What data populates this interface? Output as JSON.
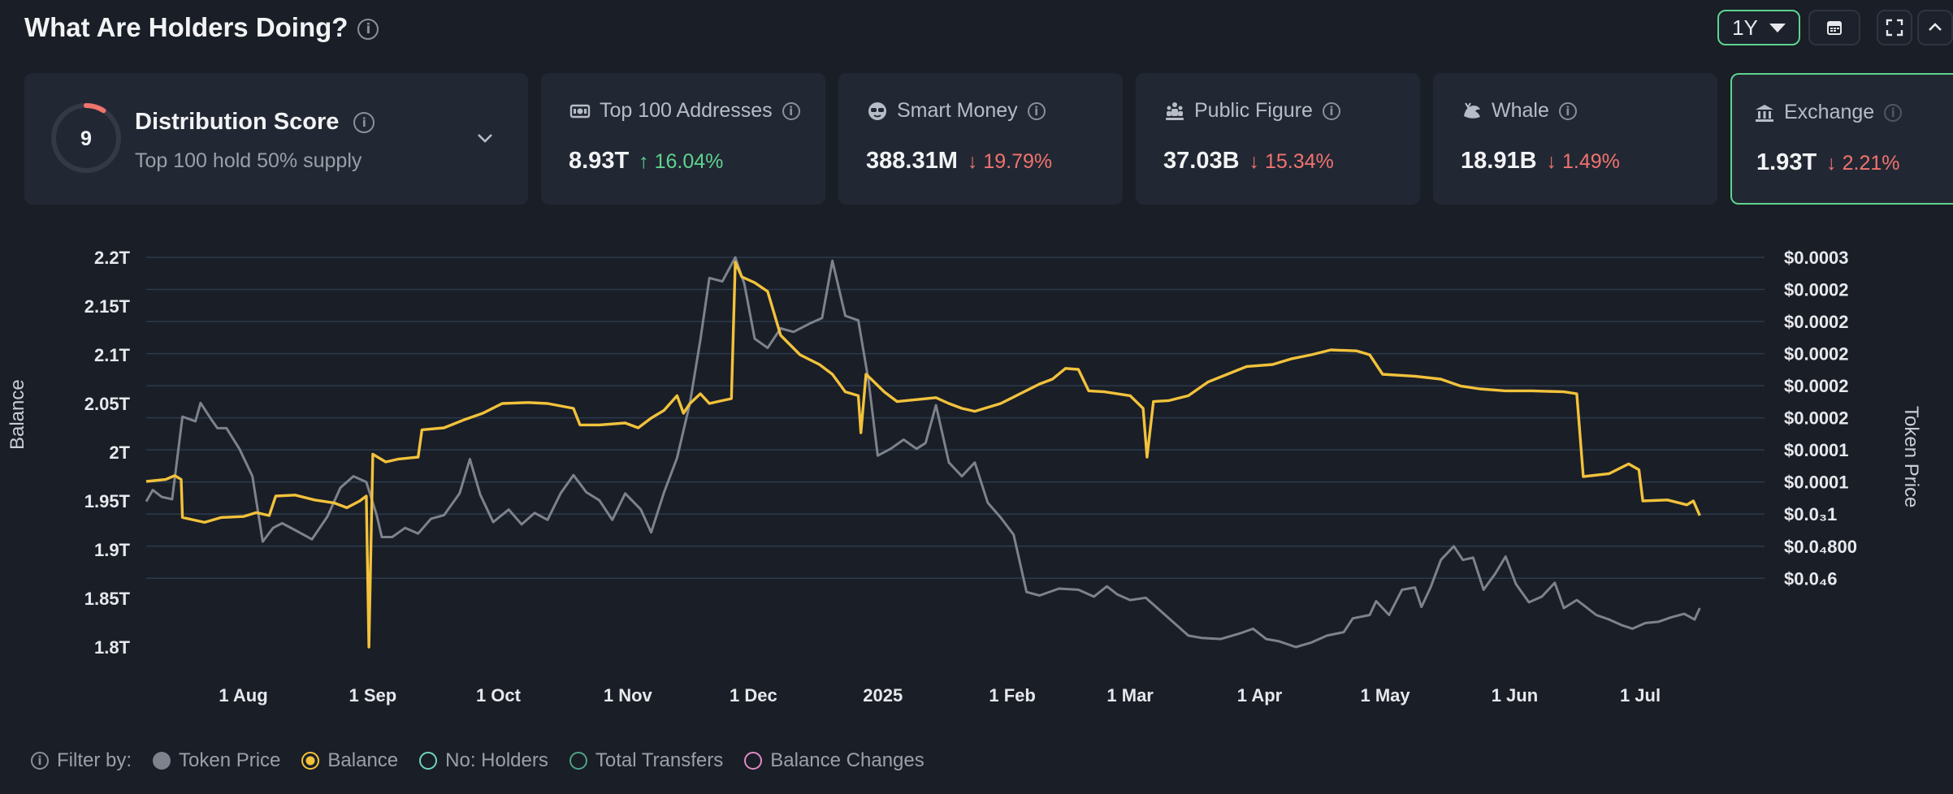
{
  "header": {
    "title": "What Are Holders Doing?",
    "range_label": "1Y"
  },
  "icons": {
    "title_info": "info-icon",
    "calendar": "calendar-icon",
    "expand": "fullscreen-icon",
    "collapse": "chevron-up-icon",
    "top100": "money-icon",
    "smart_money": "sunglasses-icon",
    "public_figure": "crowd-icon",
    "whale": "whale-icon",
    "exchange": "bank-icon"
  },
  "distribution": {
    "score": "9",
    "score_fraction": 0.09,
    "title": "Distribution Score",
    "subtitle": "Top 100 hold 50% supply"
  },
  "cards": [
    {
      "key": "top100",
      "title": "Top 100 Addresses",
      "value": "8.93T",
      "change": "16.04%",
      "direction": "up"
    },
    {
      "key": "smart_money",
      "title": "Smart Money",
      "value": "388.31M",
      "change": "19.79%",
      "direction": "down"
    },
    {
      "key": "public_figure",
      "title": "Public Figure",
      "value": "37.03B",
      "change": "15.34%",
      "direction": "down"
    },
    {
      "key": "whale",
      "title": "Whale",
      "value": "18.91B",
      "change": "1.49%",
      "direction": "down"
    },
    {
      "key": "exchange",
      "title": "Exchange",
      "value": "1.93T",
      "change": "2.21%",
      "direction": "down"
    }
  ],
  "colors": {
    "accent_green": "#5ed38f",
    "down_red": "#f0736e",
    "balance_line": "#f2c23b",
    "price_line": "#7d828c",
    "holders": "#6fd6b8",
    "transfers": "#4fa386",
    "balance_changes": "#e08bc4"
  },
  "chart_data": {
    "type": "line",
    "ylabel": "Balance",
    "y2label": "Token Price",
    "left_ticks": [
      "2.2T",
      "2.15T",
      "2.1T",
      "2.05T",
      "2T",
      "1.95T",
      "1.9T",
      "1.85T",
      "1.8T"
    ],
    "left_range": [
      1.8,
      2.2
    ],
    "right_ticks": [
      "$0.0003",
      "$0.0002",
      "$0.0002",
      "$0.0002",
      "$0.0002",
      "$0.0002",
      "$0.0001",
      "$0.0001",
      "$0.0₃1",
      "$0.0₄800",
      "$0.0₄6"
    ],
    "x_ticks": [
      "1 Aug",
      "1 Sep",
      "1 Oct",
      "1 Nov",
      "1 Dec",
      "2025",
      "1 Feb",
      "1 Mar",
      "1 Apr",
      "1 May",
      "1 Jun",
      "1 Jul"
    ],
    "x_range": [
      0,
      12.5
    ],
    "x_tick_positions": [
      0.75,
      1.75,
      2.72,
      3.72,
      4.69,
      5.69,
      6.69,
      7.6,
      8.6,
      9.57,
      10.57,
      11.54
    ],
    "grid": true,
    "series": [
      {
        "name": "Balance",
        "unit": "T",
        "points": [
          [
            0,
            1.97
          ],
          [
            0.15,
            1.972
          ],
          [
            0.22,
            1.976
          ],
          [
            0.27,
            1.972
          ],
          [
            0.28,
            1.933
          ],
          [
            0.45,
            1.928
          ],
          [
            0.58,
            1.933
          ],
          [
            0.75,
            1.934
          ],
          [
            0.85,
            1.938
          ],
          [
            0.95,
            1.935
          ],
          [
            1.0,
            1.955
          ],
          [
            1.15,
            1.956
          ],
          [
            1.3,
            1.951
          ],
          [
            1.45,
            1.948
          ],
          [
            1.55,
            1.943
          ],
          [
            1.65,
            1.95
          ],
          [
            1.7,
            1.955
          ],
          [
            1.72,
            1.8
          ],
          [
            1.75,
            1.998
          ],
          [
            1.85,
            1.99
          ],
          [
            1.95,
            1.993
          ],
          [
            2.1,
            1.995
          ],
          [
            2.13,
            2.023
          ],
          [
            2.3,
            2.025
          ],
          [
            2.45,
            2.033
          ],
          [
            2.6,
            2.04
          ],
          [
            2.75,
            2.05
          ],
          [
            2.95,
            2.051
          ],
          [
            3.1,
            2.05
          ],
          [
            3.3,
            2.045
          ],
          [
            3.35,
            2.028
          ],
          [
            3.5,
            2.028
          ],
          [
            3.7,
            2.03
          ],
          [
            3.8,
            2.025
          ],
          [
            3.9,
            2.035
          ],
          [
            4.0,
            2.043
          ],
          [
            4.1,
            2.058
          ],
          [
            4.15,
            2.04
          ],
          [
            4.2,
            2.05
          ],
          [
            4.28,
            2.06
          ],
          [
            4.35,
            2.05
          ],
          [
            4.45,
            2.053
          ],
          [
            4.52,
            2.055
          ],
          [
            4.55,
            2.195
          ],
          [
            4.6,
            2.18
          ],
          [
            4.7,
            2.174
          ],
          [
            4.8,
            2.165
          ],
          [
            4.9,
            2.12
          ],
          [
            5.05,
            2.1
          ],
          [
            5.2,
            2.09
          ],
          [
            5.3,
            2.08
          ],
          [
            5.4,
            2.062
          ],
          [
            5.5,
            2.058
          ],
          [
            5.52,
            2.02
          ],
          [
            5.56,
            2.08
          ],
          [
            5.6,
            2.075
          ],
          [
            5.7,
            2.062
          ],
          [
            5.8,
            2.052
          ],
          [
            5.95,
            2.054
          ],
          [
            6.1,
            2.056
          ],
          [
            6.2,
            2.05
          ],
          [
            6.3,
            2.045
          ],
          [
            6.4,
            2.042
          ],
          [
            6.6,
            2.05
          ],
          [
            6.75,
            2.06
          ],
          [
            6.9,
            2.07
          ],
          [
            7.0,
            2.075
          ],
          [
            7.1,
            2.086
          ],
          [
            7.2,
            2.085
          ],
          [
            7.28,
            2.063
          ],
          [
            7.4,
            2.062
          ],
          [
            7.6,
            2.058
          ],
          [
            7.7,
            2.045
          ],
          [
            7.73,
            1.995
          ],
          [
            7.78,
            2.052
          ],
          [
            7.9,
            2.053
          ],
          [
            8.05,
            2.058
          ],
          [
            8.2,
            2.072
          ],
          [
            8.35,
            2.08
          ],
          [
            8.5,
            2.088
          ],
          [
            8.7,
            2.09
          ],
          [
            8.85,
            2.096
          ],
          [
            9.0,
            2.1
          ],
          [
            9.15,
            2.105
          ],
          [
            9.35,
            2.104
          ],
          [
            9.45,
            2.1
          ],
          [
            9.55,
            2.08
          ],
          [
            9.8,
            2.078
          ],
          [
            10.0,
            2.075
          ],
          [
            10.15,
            2.068
          ],
          [
            10.3,
            2.065
          ],
          [
            10.5,
            2.063
          ],
          [
            10.7,
            2.063
          ],
          [
            10.95,
            2.062
          ],
          [
            11.05,
            2.06
          ],
          [
            11.1,
            1.975
          ],
          [
            11.3,
            1.978
          ],
          [
            11.45,
            1.988
          ],
          [
            11.53,
            1.982
          ],
          [
            11.56,
            1.95
          ],
          [
            11.75,
            1.951
          ],
          [
            11.9,
            1.946
          ],
          [
            11.95,
            1.95
          ],
          [
            12.0,
            1.935
          ]
        ]
      },
      {
        "name": "Token Price",
        "unit": "$",
        "points": [
          [
            0,
            8.7e-05
          ],
          [
            0.05,
            9.7e-05
          ],
          [
            0.12,
            9.1e-05
          ],
          [
            0.2,
            8.9e-05
          ],
          [
            0.28,
            0.000161
          ],
          [
            0.38,
            0.000157
          ],
          [
            0.42,
            0.000173
          ],
          [
            0.5,
            0.000159
          ],
          [
            0.55,
            0.000151
          ],
          [
            0.62,
            0.000151
          ],
          [
            0.72,
            0.000133
          ],
          [
            0.82,
            0.000109
          ],
          [
            0.9,
            5.2e-05
          ],
          [
            0.98,
            6.4e-05
          ],
          [
            1.05,
            6.8e-05
          ],
          [
            1.15,
            6.2e-05
          ],
          [
            1.28,
            5.4e-05
          ],
          [
            1.4,
            7.4e-05
          ],
          [
            1.5,
            9.9e-05
          ],
          [
            1.6,
            0.000109
          ],
          [
            1.7,
            0.000104
          ],
          [
            1.78,
            7.5e-05
          ],
          [
            1.82,
            5.6e-05
          ],
          [
            1.9,
            5.6e-05
          ],
          [
            2.0,
            6.4e-05
          ],
          [
            2.1,
            5.9e-05
          ],
          [
            2.2,
            7.2e-05
          ],
          [
            2.3,
            7.5e-05
          ],
          [
            2.42,
            9.4e-05
          ],
          [
            2.5,
            0.000124
          ],
          [
            2.58,
            9.3e-05
          ],
          [
            2.68,
            6.9e-05
          ],
          [
            2.8,
            8e-05
          ],
          [
            2.9,
            6.7e-05
          ],
          [
            3.0,
            7.7e-05
          ],
          [
            3.1,
            7.1e-05
          ],
          [
            3.2,
            9.4e-05
          ],
          [
            3.3,
            0.00011
          ],
          [
            3.4,
            9.5e-05
          ],
          [
            3.5,
            8.8e-05
          ],
          [
            3.6,
            7.1e-05
          ],
          [
            3.7,
            9.4e-05
          ],
          [
            3.82,
            8e-05
          ],
          [
            3.9,
            6e-05
          ],
          [
            4.0,
            9.5e-05
          ],
          [
            4.1,
            0.000125
          ],
          [
            4.2,
            0.000173
          ],
          [
            4.28,
            0.000228
          ],
          [
            4.35,
            0.000282
          ],
          [
            4.45,
            0.000279
          ],
          [
            4.55,
            0.0003
          ],
          [
            4.62,
            0.000277
          ],
          [
            4.7,
            0.000229
          ],
          [
            4.8,
            0.000221
          ],
          [
            4.9,
            0.000238
          ],
          [
            5.0,
            0.000235
          ],
          [
            5.12,
            0.000242
          ],
          [
            5.22,
            0.000247
          ],
          [
            5.3,
            0.000297
          ],
          [
            5.4,
            0.000249
          ],
          [
            5.5,
            0.000245
          ],
          [
            5.58,
            0.000192
          ],
          [
            5.65,
            0.000127
          ],
          [
            5.75,
            0.000133
          ],
          [
            5.85,
            0.000141
          ],
          [
            5.95,
            0.000133
          ],
          [
            6.02,
            0.000138
          ],
          [
            6.1,
            0.000171
          ],
          [
            6.2,
            0.000121
          ],
          [
            6.3,
            0.000109
          ],
          [
            6.4,
            0.000121
          ],
          [
            6.5,
            8.6e-05
          ],
          [
            6.6,
            7.3e-05
          ],
          [
            6.7,
            5.8e-05
          ],
          [
            6.8,
            8e-06
          ],
          [
            6.9,
            5e-06
          ],
          [
            7.05,
            1.1e-05
          ],
          [
            7.2,
            1e-05
          ],
          [
            7.32,
            4e-06
          ],
          [
            7.42,
            1.3e-05
          ],
          [
            7.5,
            6e-06
          ],
          [
            7.6,
            1e-06
          ],
          [
            7.72,
            3e-06
          ],
          [
            7.85,
            -1e-05
          ],
          [
            7.95,
            -2e-05
          ],
          [
            8.05,
            -3e-05
          ],
          [
            8.15,
            -3.2e-05
          ],
          [
            8.3,
            -3.3e-05
          ],
          [
            8.45,
            -2.8e-05
          ],
          [
            8.55,
            -2.4e-05
          ],
          [
            8.65,
            -3.3e-05
          ],
          [
            8.75,
            -3.5e-05
          ],
          [
            8.88,
            -4e-05
          ],
          [
            9.0,
            -3.6e-05
          ],
          [
            9.12,
            -3e-05
          ],
          [
            9.25,
            -2.7e-05
          ],
          [
            9.32,
            -1.5e-05
          ],
          [
            9.45,
            -1.2e-05
          ],
          [
            9.5,
            0.0
          ],
          [
            9.6,
            -1.2e-05
          ],
          [
            9.7,
            1e-05
          ],
          [
            9.8,
            1.2e-05
          ],
          [
            9.85,
            -5e-06
          ],
          [
            9.92,
            1.2e-05
          ],
          [
            10.0,
            3.6e-05
          ],
          [
            10.1,
            4.8e-05
          ],
          [
            10.17,
            3.6e-05
          ],
          [
            10.25,
            3.8e-05
          ],
          [
            10.33,
            1e-05
          ],
          [
            10.42,
            2.4e-05
          ],
          [
            10.5,
            3.9e-05
          ],
          [
            10.58,
            1.5e-05
          ],
          [
            10.68,
            -1e-06
          ],
          [
            10.78,
            4e-06
          ],
          [
            10.88,
            1.6e-05
          ],
          [
            10.95,
            -6e-06
          ],
          [
            11.05,
            1e-06
          ],
          [
            11.12,
            -5e-06
          ],
          [
            11.2,
            -1.2e-05
          ],
          [
            11.3,
            -1.6e-05
          ],
          [
            11.4,
            -2.1e-05
          ],
          [
            11.48,
            -2.4e-05
          ],
          [
            11.58,
            -1.9e-05
          ],
          [
            11.68,
            -1.8e-05
          ],
          [
            11.78,
            -1.4e-05
          ],
          [
            11.88,
            -1.1e-05
          ],
          [
            11.96,
            -1.6e-05
          ],
          [
            12.0,
            -6e-06
          ]
        ]
      }
    ],
    "right_range": [
      -4e-05,
      0.0003
    ],
    "right_tick_values": [
      0.0003,
      0.000272,
      0.000244,
      0.000216,
      0.000188,
      0.00016,
      0.000132,
      0.000104,
      7.6e-05,
      4.8e-05,
      2e-05
    ]
  },
  "legend": {
    "filter_label": "Filter by:",
    "items": [
      {
        "name": "Token Price",
        "style": "filled",
        "color": "#7d828c"
      },
      {
        "name": "Balance",
        "style": "ring-filled",
        "color": "#f2c23b"
      },
      {
        "name": "No: Holders",
        "style": "ring",
        "color": "#6fd6b8"
      },
      {
        "name": "Total Transfers",
        "style": "ring",
        "color": "#4fa386"
      },
      {
        "name": "Balance Changes",
        "style": "ring",
        "color": "#e08bc4"
      }
    ]
  }
}
